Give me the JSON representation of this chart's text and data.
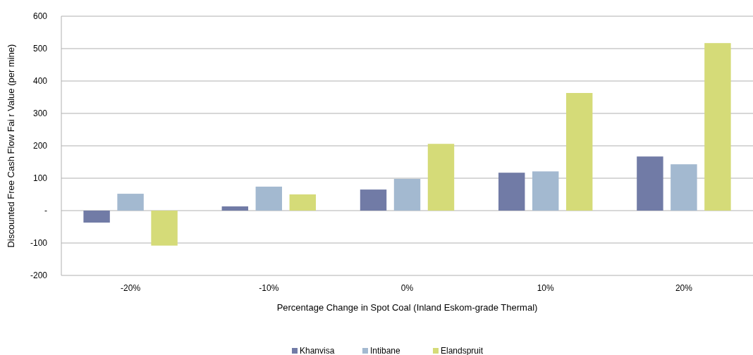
{
  "chart_data": {
    "type": "bar",
    "xlabel": "Percentage Change in Spot Coal (Inland Eskom-grade Thermal)",
    "ylabel": "Discounted Free Cash Flow Fai r Value (per mine)",
    "categories": [
      "-20%",
      "-10%",
      "0%",
      "10%",
      "20%"
    ],
    "series": [
      {
        "name": "Khanvisa",
        "color": "#717ba6",
        "values": [
          -37,
          13,
          65,
          117,
          167
        ]
      },
      {
        "name": "Intibane",
        "color": "#a3b9d0",
        "values": [
          52,
          74,
          98,
          121,
          143
        ]
      },
      {
        "name": "Elandspruit",
        "color": "#d5db78",
        "values": [
          -108,
          50,
          206,
          363,
          517
        ]
      }
    ],
    "ylim": [
      -200,
      600
    ],
    "yticks": [
      -200,
      -100,
      {
        "value": 0,
        "label": "-"
      },
      100,
      200,
      300,
      400,
      500,
      600
    ],
    "grid": "y",
    "legend": "bottom"
  }
}
